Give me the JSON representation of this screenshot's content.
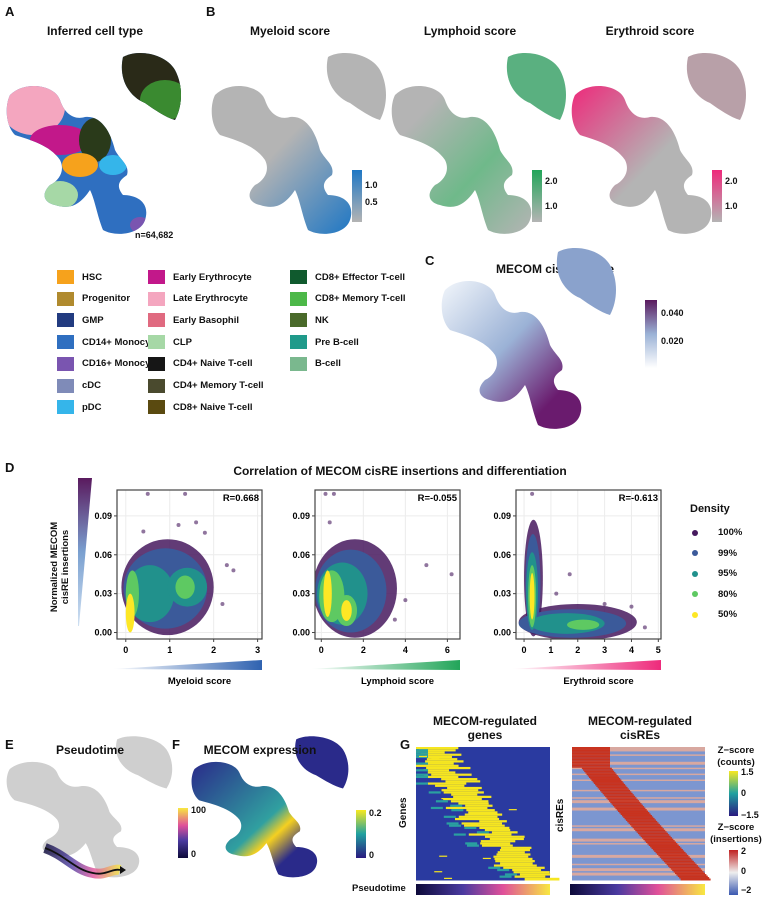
{
  "panels": {
    "A": {
      "label": "A",
      "title": "Inferred cell type",
      "n_label": "n=64,682"
    },
    "B": {
      "label": "B",
      "myeloid": {
        "title": "Myeloid score",
        "ticks": [
          "1.0",
          "0.5"
        ],
        "color": "#1f77c4"
      },
      "lymphoid": {
        "title": "Lymphoid score",
        "ticks": [
          "2.0",
          "1.0"
        ],
        "color": "#22a559"
      },
      "erythroid": {
        "title": "Erythroid score",
        "ticks": [
          "2.0",
          "1.0"
        ],
        "color": "#ee2a7b"
      }
    },
    "C": {
      "label": "C",
      "title": "MECOM cisRE score",
      "ticks": [
        "0.040",
        "0.020"
      ],
      "color": "#6a1b6e"
    },
    "D": {
      "label": "D",
      "title": "Correlation of MECOM cisRE insertions and differentiation",
      "ylabel_line1": "Normalized MECOM",
      "ylabel_line2": "cisRE insertions"
    },
    "E": {
      "label": "E",
      "title": "Pseudotime",
      "ticks": [
        "100",
        "0"
      ]
    },
    "F": {
      "label": "F",
      "title": "MECOM expression",
      "ticks": [
        "0.2",
        "0"
      ]
    },
    "G": {
      "label": "G",
      "genes_title_1": "MECOM-regulated",
      "genes_title_2": "genes",
      "cisre_title_1": "MECOM-regulated",
      "cisre_title_2": "cisREs",
      "genes_ylabel": "Genes",
      "cisre_ylabel": "cisREs",
      "pseudotime_label": "Pseudotime",
      "counts_legend_1": "Z−score",
      "counts_legend_2": "(counts)",
      "counts_ticks": [
        "1.5",
        "0",
        "−1.5"
      ],
      "ins_legend_1": "Z−score",
      "ins_legend_2": "(insertions)",
      "ins_ticks": [
        "2",
        "0",
        "−2"
      ]
    }
  },
  "legend": {
    "items": [
      {
        "label": "HSC",
        "color": "#f6a21c"
      },
      {
        "label": "Progenitor",
        "color": "#b08a2e"
      },
      {
        "label": "GMP",
        "color": "#223b80"
      },
      {
        "label": "CD14+ Monocyte",
        "color": "#2f6fc0"
      },
      {
        "label": "CD16+ Monocyte",
        "color": "#7a55b0"
      },
      {
        "label": "cDC",
        "color": "#7f8bb8"
      },
      {
        "label": "pDC",
        "color": "#35b5ea"
      },
      {
        "label": "Early Erythrocyte",
        "color": "#c2188a"
      },
      {
        "label": "Late Erythrocyte",
        "color": "#f4a6bf"
      },
      {
        "label": "Early Basophil",
        "color": "#e06a80"
      },
      {
        "label": "CLP",
        "color": "#a6d8a6"
      },
      {
        "label": "CD4+ Naive T-cell",
        "color": "#161616"
      },
      {
        "label": "CD4+ Memory T-cell",
        "color": "#4a4a2e"
      },
      {
        "label": "CD8+ Naive T-cell",
        "color": "#5a4a10"
      },
      {
        "label": "CD8+ Effector T-cell",
        "color": "#105a2e"
      },
      {
        "label": "CD8+ Memory T-cell",
        "color": "#4cb848"
      },
      {
        "label": "NK",
        "color": "#4a6a2a"
      },
      {
        "label": "Pre B-cell",
        "color": "#1f9a8a"
      },
      {
        "label": "B-cell",
        "color": "#7ab88e"
      }
    ]
  },
  "chart_data": [
    {
      "type": "scatter",
      "xlabel": "Myeloid score",
      "ylabel": "Normalized MECOM cisRE insertions",
      "annotation": "R=0.668",
      "xlim": [
        -0.2,
        3.1
      ],
      "ylim": [
        -0.005,
        0.11
      ],
      "xticks": [
        "0",
        "1",
        "2",
        "3"
      ],
      "xtick_values": [
        0,
        1,
        2,
        3
      ],
      "yticks": [
        "0.00",
        "0.03",
        "0.06",
        "0.09"
      ],
      "ytick_values": [
        0,
        0.03,
        0.06,
        0.09
      ],
      "gradient_color": "#2f62b0",
      "clusters": [
        {
          "level": "100%",
          "x": 0.95,
          "y": 0.035,
          "rx": 1.05,
          "ry": 0.037
        },
        {
          "level": "99%",
          "x": 0.9,
          "y": 0.034,
          "rx": 0.95,
          "ry": 0.031
        },
        {
          "level": "95%",
          "x": 0.55,
          "y": 0.03,
          "rx": 0.55,
          "ry": 0.022
        },
        {
          "level": "95%",
          "x": 1.4,
          "y": 0.035,
          "rx": 0.45,
          "ry": 0.015
        },
        {
          "level": "80%",
          "x": 1.35,
          "y": 0.035,
          "rx": 0.22,
          "ry": 0.009
        },
        {
          "level": "80%",
          "x": 0.15,
          "y": 0.03,
          "rx": 0.15,
          "ry": 0.018
        },
        {
          "level": "50%",
          "x": 0.1,
          "y": 0.015,
          "rx": 0.1,
          "ry": 0.015
        }
      ],
      "outliers": [
        [
          0.5,
          0.107
        ],
        [
          1.35,
          0.107
        ],
        [
          1.8,
          0.077
        ],
        [
          2.3,
          0.052
        ],
        [
          2.2,
          0.022
        ],
        [
          0.4,
          0.078
        ],
        [
          1.6,
          0.085
        ],
        [
          1.2,
          0.083
        ],
        [
          2.45,
          0.048
        ]
      ]
    },
    {
      "type": "scatter",
      "xlabel": "Lymphoid score",
      "ylabel": "Normalized MECOM cisRE insertions",
      "annotation": "R=-0.055",
      "xlim": [
        -0.3,
        6.6
      ],
      "ylim": [
        -0.005,
        0.11
      ],
      "xticks": [
        "0",
        "2",
        "4",
        "6"
      ],
      "xtick_values": [
        0,
        2,
        4,
        6
      ],
      "yticks": [
        "0.00",
        "0.03",
        "0.06",
        "0.09"
      ],
      "ytick_values": [
        0,
        0.03,
        0.06,
        0.09
      ],
      "gradient_color": "#22a559",
      "clusters": [
        {
          "level": "100%",
          "x": 1.6,
          "y": 0.034,
          "rx": 2.0,
          "ry": 0.038
        },
        {
          "level": "99%",
          "x": 1.4,
          "y": 0.032,
          "rx": 1.7,
          "ry": 0.032
        },
        {
          "level": "95%",
          "x": 1.0,
          "y": 0.03,
          "rx": 1.2,
          "ry": 0.024
        },
        {
          "level": "80%",
          "x": 0.5,
          "y": 0.028,
          "rx": 0.6,
          "ry": 0.02
        },
        {
          "level": "80%",
          "x": 1.2,
          "y": 0.017,
          "rx": 0.5,
          "ry": 0.012
        },
        {
          "level": "50%",
          "x": 0.3,
          "y": 0.03,
          "rx": 0.2,
          "ry": 0.018
        },
        {
          "level": "50%",
          "x": 1.2,
          "y": 0.017,
          "rx": 0.25,
          "ry": 0.008
        }
      ],
      "outliers": [
        [
          0.2,
          0.107
        ],
        [
          0.6,
          0.107
        ],
        [
          5.0,
          0.052
        ],
        [
          6.2,
          0.045
        ],
        [
          4.0,
          0.025
        ],
        [
          0.4,
          0.085
        ],
        [
          3.5,
          0.01
        ]
      ]
    },
    {
      "type": "scatter",
      "xlabel": "Erythroid score",
      "ylabel": "Normalized MECOM cisRE insertions",
      "annotation": "R=-0.613",
      "xlim": [
        -0.3,
        5.1
      ],
      "ylim": [
        -0.005,
        0.11
      ],
      "xticks": [
        "0",
        "1",
        "2",
        "3",
        "4",
        "5"
      ],
      "xtick_values": [
        0,
        1,
        2,
        3,
        4,
        5
      ],
      "yticks": [
        "0.00",
        "0.03",
        "0.06",
        "0.09"
      ],
      "ytick_values": [
        0,
        0.03,
        0.06,
        0.09
      ],
      "gradient_color": "#ee2a7b",
      "clusters": [
        {
          "level": "100%",
          "x": 0.35,
          "y": 0.042,
          "rx": 0.35,
          "ry": 0.045
        },
        {
          "level": "100%",
          "x": 2.0,
          "y": 0.008,
          "rx": 2.2,
          "ry": 0.014
        },
        {
          "level": "99%",
          "x": 0.33,
          "y": 0.038,
          "rx": 0.28,
          "ry": 0.038
        },
        {
          "level": "99%",
          "x": 1.8,
          "y": 0.007,
          "rx": 2.0,
          "ry": 0.011
        },
        {
          "level": "95%",
          "x": 0.3,
          "y": 0.032,
          "rx": 0.22,
          "ry": 0.03
        },
        {
          "level": "95%",
          "x": 1.6,
          "y": 0.007,
          "rx": 1.4,
          "ry": 0.008
        },
        {
          "level": "80%",
          "x": 0.3,
          "y": 0.028,
          "rx": 0.15,
          "ry": 0.024
        },
        {
          "level": "80%",
          "x": 2.2,
          "y": 0.006,
          "rx": 0.6,
          "ry": 0.004
        },
        {
          "level": "50%",
          "x": 0.3,
          "y": 0.028,
          "rx": 0.09,
          "ry": 0.018
        }
      ],
      "outliers": [
        [
          0.3,
          0.107
        ],
        [
          1.7,
          0.045
        ],
        [
          3.0,
          0.022
        ],
        [
          4.0,
          0.02
        ],
        [
          4.5,
          0.004
        ],
        [
          1.2,
          0.03
        ]
      ]
    }
  ],
  "density_legend": {
    "title": "Density",
    "levels": [
      {
        "label": "100%",
        "color": "#46195e"
      },
      {
        "label": "99%",
        "color": "#3b5a9a"
      },
      {
        "label": "95%",
        "color": "#21918c"
      },
      {
        "label": "80%",
        "color": "#5ec962"
      },
      {
        "label": "50%",
        "color": "#fde725"
      }
    ]
  }
}
